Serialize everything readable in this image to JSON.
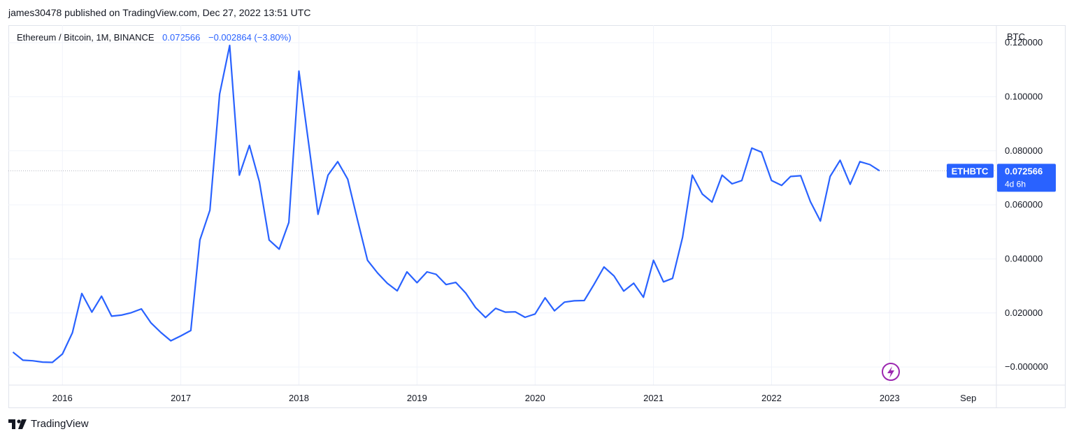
{
  "header": {
    "published_line": "james30478 published on TradingView.com, Dec 27, 2022 13:51 UTC"
  },
  "legend": {
    "symbol": "Ethereum / Bitcoin, 1M, BINANCE",
    "last": "0.072566",
    "change": "−0.002864 (−3.80%)"
  },
  "currency_label": "BTC",
  "price_tag": {
    "ticker": "ETHBTC",
    "price": "0.072566",
    "countdown": "4d 6h",
    "color": "#2962ff"
  },
  "footer": {
    "brand": "TradingView"
  },
  "chart_data": {
    "type": "line",
    "series": [
      {
        "color": "#2962ff",
        "x": [
          "2015-08",
          "2015-09",
          "2015-10",
          "2015-11",
          "2015-12",
          "2016-01",
          "2016-02",
          "2016-03",
          "2016-04",
          "2016-05",
          "2016-06",
          "2016-07",
          "2016-08",
          "2016-09",
          "2016-10",
          "2016-11",
          "2016-12",
          "2017-01",
          "2017-02",
          "2017-03",
          "2017-04",
          "2017-05",
          "2017-06",
          "2017-07",
          "2017-08",
          "2017-09",
          "2017-10",
          "2017-11",
          "2017-12",
          "2018-01",
          "2018-02",
          "2018-03",
          "2018-04",
          "2018-05",
          "2018-06",
          "2018-07",
          "2018-08",
          "2018-09",
          "2018-10",
          "2018-11",
          "2018-12",
          "2019-01",
          "2019-02",
          "2019-03",
          "2019-04",
          "2019-05",
          "2019-06",
          "2019-07",
          "2019-08",
          "2019-09",
          "2019-10",
          "2019-11",
          "2019-12",
          "2020-01",
          "2020-02",
          "2020-03",
          "2020-04",
          "2020-05",
          "2020-06",
          "2020-07",
          "2020-08",
          "2020-09",
          "2020-10",
          "2020-11",
          "2020-12",
          "2021-01",
          "2021-02",
          "2021-03",
          "2021-04",
          "2021-05",
          "2021-06",
          "2021-07",
          "2021-08",
          "2021-09",
          "2021-10",
          "2021-11",
          "2021-12",
          "2022-01",
          "2022-02",
          "2022-03",
          "2022-04",
          "2022-05",
          "2022-06",
          "2022-07",
          "2022-08",
          "2022-09",
          "2022-10",
          "2022-11",
          "2022-12"
        ],
        "values": [
          0.0055,
          0.0025,
          0.0023,
          0.0018,
          0.0017,
          0.0048,
          0.0127,
          0.0272,
          0.0203,
          0.0262,
          0.0188,
          0.0192,
          0.0201,
          0.0215,
          0.0163,
          0.0127,
          0.0097,
          0.0115,
          0.0135,
          0.047,
          0.058,
          0.101,
          0.119,
          0.071,
          0.082,
          0.0685,
          0.047,
          0.0436,
          0.0535,
          0.1095,
          0.082,
          0.0565,
          0.071,
          0.076,
          0.0695,
          0.0545,
          0.0395,
          0.0348,
          0.031,
          0.0282,
          0.0352,
          0.0312,
          0.0352,
          0.0343,
          0.0305,
          0.0313,
          0.0273,
          0.022,
          0.0183,
          0.0217,
          0.0203,
          0.0204,
          0.0184,
          0.0196,
          0.0256,
          0.0208,
          0.024,
          0.0245,
          0.0246,
          0.0305,
          0.037,
          0.0337,
          0.0281,
          0.031,
          0.0258,
          0.0395,
          0.0315,
          0.0328,
          0.048,
          0.071,
          0.064,
          0.061,
          0.071,
          0.0678,
          0.069,
          0.081,
          0.0795,
          0.069,
          0.0672,
          0.0705,
          0.0708,
          0.0612,
          0.054,
          0.0705,
          0.0765,
          0.0676,
          0.076,
          0.0749,
          0.0726
        ]
      }
    ],
    "ylabel": "BTC",
    "ylim": [
      -0.0067,
      0.1265
    ],
    "yticks": [
      "0.120000",
      "0.100000",
      "0.080000",
      "0.060000",
      "0.040000",
      "0.020000",
      "−0.000000"
    ],
    "yticks_values": [
      0.12,
      0.1,
      0.08,
      0.06,
      0.04,
      0.02,
      0.0
    ],
    "xticks": [
      "2016",
      "2017",
      "2018",
      "2019",
      "2020",
      "2021",
      "2022",
      "2023",
      "Sep"
    ],
    "xticks_dates": [
      "2016-01",
      "2017-01",
      "2018-01",
      "2019-01",
      "2020-01",
      "2021-01",
      "2022-01",
      "2023-01",
      "2023-09"
    ],
    "xlim": [
      "2015-07-18",
      "2023-11-27"
    ],
    "last_price_line": 0.0726,
    "grid": true
  }
}
